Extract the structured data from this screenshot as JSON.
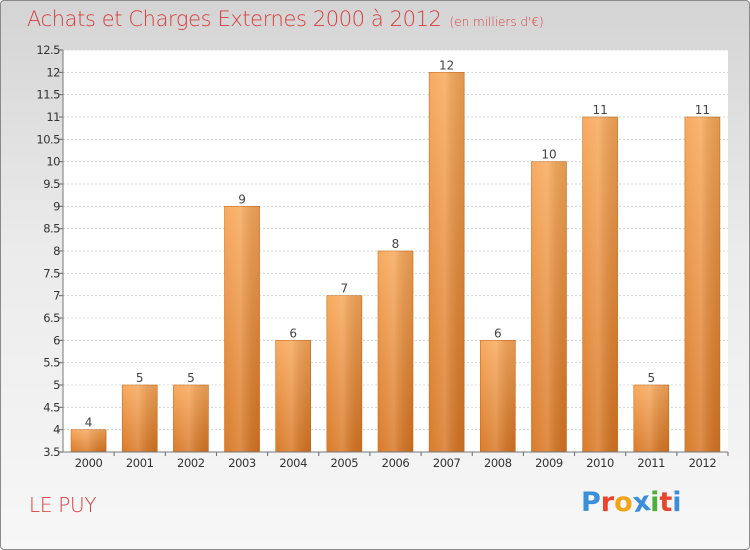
{
  "header": {
    "title": "Achats et Charges Externes 2000 à 2012",
    "unit": "(en milliers d'€)"
  },
  "footer": {
    "commune": "LE PUY",
    "logo_text": "Proxiti",
    "logo_colors": [
      "#3a8fd8",
      "#e8452c",
      "#f2a516",
      "#3a8fd8",
      "#4caf3a",
      "#e8452c",
      "#3a8fd8"
    ]
  },
  "chart_data": {
    "type": "bar",
    "title": "Achats et Charges Externes 2000 à 2012",
    "subtitle": "(en milliers d'€)",
    "xlabel": "",
    "ylabel": "",
    "categories": [
      "2000",
      "2001",
      "2002",
      "2003",
      "2004",
      "2005",
      "2006",
      "2007",
      "2008",
      "2009",
      "2010",
      "2011",
      "2012"
    ],
    "values": [
      4,
      5,
      5,
      9,
      6,
      7,
      8,
      12,
      6,
      10,
      11,
      5,
      11
    ],
    "ylim": [
      3.5,
      12.5
    ],
    "yticks": [
      "3.5",
      "4",
      "4.5",
      "5",
      "5.5",
      "6",
      "6.5",
      "7",
      "7.5",
      "8",
      "8.5",
      "9",
      "9.5",
      "10",
      "10.5",
      "11",
      "11.5",
      "12",
      "12.5"
    ],
    "grid": true,
    "legend": "none",
    "bar_color_top": "#f7a657",
    "bar_color_bottom": "#d77420"
  }
}
